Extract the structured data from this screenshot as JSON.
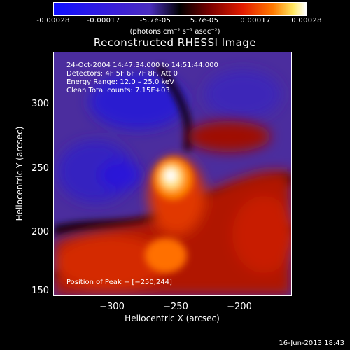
{
  "colorbar": {
    "ticks": [
      "-0.00028",
      "-0.00017",
      "-5.7e-05",
      "5.7e-05",
      "0.00017",
      "0.00028"
    ],
    "unit_label": "(photons cm⁻² s⁻¹ asec⁻²)",
    "colors": [
      "#1010ff",
      "#4a2dbf",
      "#000000",
      "#e21b00",
      "#ff7a00",
      "#ffffff"
    ]
  },
  "chart_data": {
    "type": "heatmap",
    "title": "Reconstructed RHESSI Image",
    "xlabel": "Heliocentric X (arcsec)",
    "ylabel": "Heliocentric Y (arcsec)",
    "x_ticks": [
      "−300",
      "−250",
      "−200"
    ],
    "y_ticks": [
      "300",
      "250",
      "200",
      "150"
    ],
    "xlim": [
      -345,
      -242
    ],
    "ylim": [
      148,
      352
    ],
    "peak": {
      "x": -250,
      "y": 244
    },
    "color_range": [
      -0.00028,
      0.00028
    ],
    "annotations": [
      "24-Oct-2004 14:47:34.000 to 14:51:44.000",
      "Detectors: 4F 5F 6F 7F 8F, Att 0",
      "Energy Range: 12.0 – 25.0 keV",
      "Clean    Total counts: 7.15E+03"
    ],
    "peak_label": "Position of Peak = [−250,244]"
  },
  "footer": {
    "timestamp": "16-Jun-2013 18:43"
  }
}
